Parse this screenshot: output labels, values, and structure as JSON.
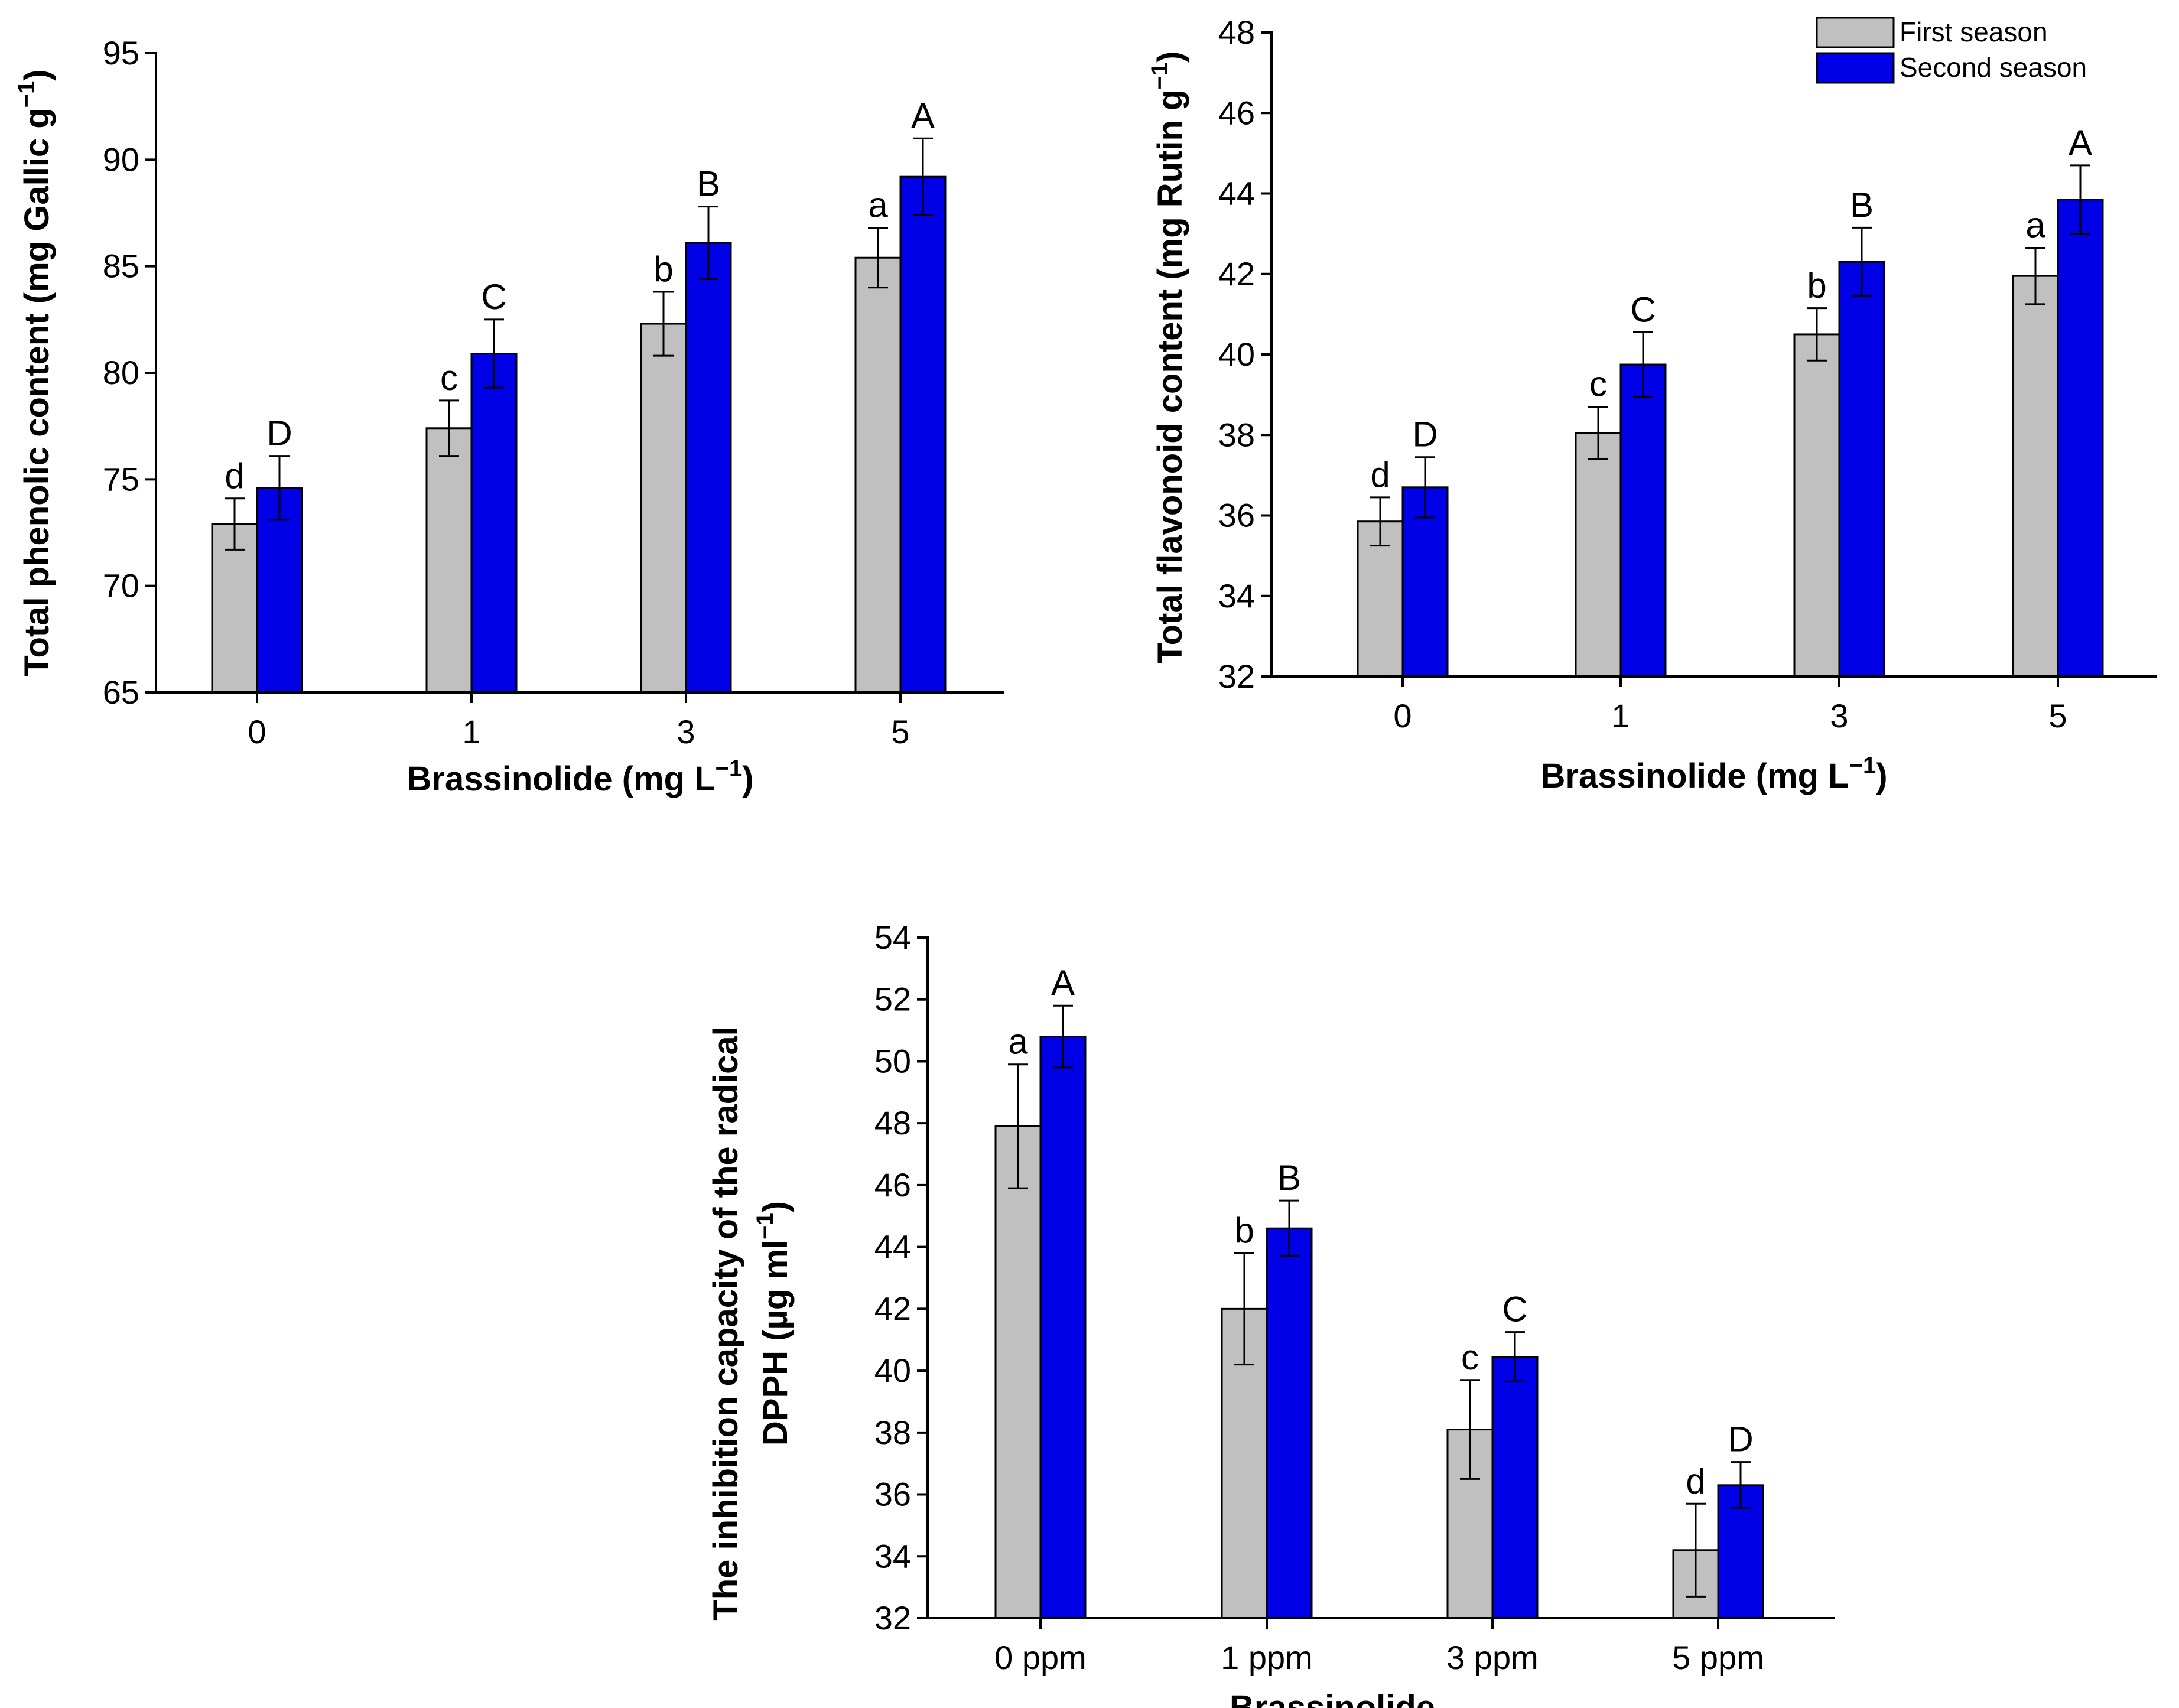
{
  "chart_data": [
    {
      "type": "bar",
      "categories": [
        "0",
        "1",
        "3",
        "5"
      ],
      "xlabel": "Brassinolide (mg L",
      "xlabel_sup": "−1",
      "xlabel_end": ")",
      "ylabel": "Total phenolic content (mg Gallic g",
      "ylabel_sup": "−1",
      "ylabel_end": ")",
      "ylim": [
        65,
        95
      ],
      "yticks": [
        65,
        70,
        75,
        80,
        85,
        90,
        95
      ],
      "series": [
        {
          "values": [
            72.9,
            77.4,
            82.3,
            85.4
          ],
          "errors": [
            1.2,
            1.3,
            1.5,
            1.4
          ],
          "labels": [
            "d",
            "c",
            "b",
            "a"
          ],
          "color": "#C0C0C0"
        },
        {
          "values": [
            74.6,
            80.9,
            86.1,
            89.2
          ],
          "errors": [
            1.5,
            1.6,
            1.7,
            1.8
          ],
          "labels": [
            "D",
            "C",
            "B",
            "A"
          ],
          "color": "#0000E6"
        }
      ]
    },
    {
      "type": "bar",
      "categories": [
        "0",
        "1",
        "3",
        "5"
      ],
      "xlabel": "Brassinolide (mg L",
      "xlabel_sup": "−1",
      "xlabel_end": ")",
      "ylabel": "Total flavonoid content (mg Rutin g",
      "ylabel_sup": "−1",
      "ylabel_end": ")",
      "ylim": [
        32,
        48
      ],
      "yticks": [
        32,
        34,
        36,
        38,
        40,
        42,
        44,
        46,
        48
      ],
      "legend": {
        "position": "top-right",
        "entries": [
          "First season",
          "Second season"
        ]
      },
      "series": [
        {
          "name": "First season",
          "values": [
            35.85,
            38.05,
            40.5,
            41.95
          ],
          "errors": [
            0.6,
            0.65,
            0.65,
            0.7
          ],
          "labels": [
            "d",
            "c",
            "b",
            "a"
          ],
          "color": "#C0C0C0"
        },
        {
          "name": "Second season",
          "values": [
            36.7,
            39.75,
            42.3,
            43.85
          ],
          "errors": [
            0.75,
            0.8,
            0.85,
            0.85
          ],
          "labels": [
            "D",
            "C",
            "B",
            "A"
          ],
          "color": "#0000E6"
        }
      ]
    },
    {
      "type": "bar",
      "categories": [
        "0 ppm",
        "1 ppm",
        "3 ppm",
        "5 ppm"
      ],
      "xlabel": "Brassinolide",
      "ylabel": "The inhibition capacity of the radical",
      "ylabel_line2": "DPPH (µg ml",
      "ylabel_sup": "−1",
      "ylabel_end": ")",
      "ylim": [
        32,
        54
      ],
      "yticks": [
        32,
        34,
        36,
        38,
        40,
        42,
        44,
        46,
        48,
        50,
        52,
        54
      ],
      "series": [
        {
          "values": [
            47.9,
            42.0,
            38.1,
            34.2
          ],
          "errors": [
            2.0,
            1.8,
            1.6,
            1.5
          ],
          "labels": [
            "a",
            "b",
            "c",
            "d"
          ],
          "color": "#C0C0C0"
        },
        {
          "values": [
            50.8,
            44.6,
            40.45,
            36.3
          ],
          "errors": [
            1.0,
            0.9,
            0.8,
            0.75
          ],
          "labels": [
            "A",
            "B",
            "C",
            "D"
          ],
          "color": "#0000E6"
        }
      ]
    }
  ]
}
